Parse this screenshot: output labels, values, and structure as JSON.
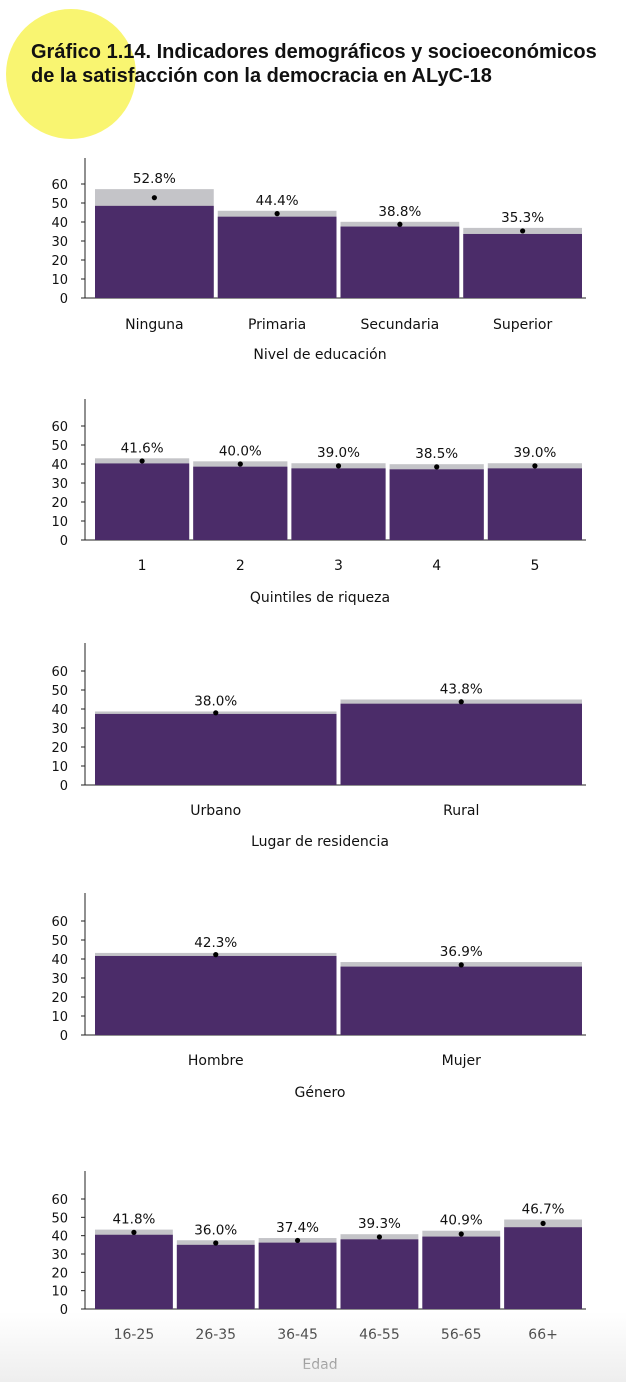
{
  "header": {
    "title_line1": "Gráfico 1.14. Indicadores demográficos y socioeconómicos",
    "title_line2": "de la satisfacción con la democracia en ALyC-18"
  },
  "colors": {
    "bar": "#4b2c69",
    "ci_band": "#c4c4c8",
    "dot": "#000000",
    "highlight": "#f9f571"
  },
  "chart_data": [
    {
      "type": "bar",
      "xlabel": "Nivel de educación",
      "categories": [
        "Ninguna",
        "Primaria",
        "Secundaria",
        "Superior"
      ],
      "values": [
        52.8,
        44.4,
        38.8,
        35.3
      ],
      "value_labels": [
        "52.8%",
        "44.4%",
        "38.8%",
        "35.3%"
      ],
      "ci": [
        [
          48.5,
          57.3
        ],
        [
          42.8,
          45.9
        ],
        [
          37.6,
          40.1
        ],
        [
          33.7,
          36.9
        ]
      ],
      "ylim": [
        0,
        60
      ],
      "yticks": [
        0,
        10,
        20,
        30,
        40,
        50,
        60
      ]
    },
    {
      "type": "bar",
      "xlabel": "Quintiles de riqueza",
      "categories": [
        "1",
        "2",
        "3",
        "4",
        "5"
      ],
      "values": [
        41.6,
        40.0,
        39.0,
        38.5,
        39.0
      ],
      "value_labels": [
        "41.6%",
        "40.0%",
        "39.0%",
        "38.5%",
        "39.0%"
      ],
      "ci": [
        [
          40.3,
          43.0
        ],
        [
          38.6,
          41.4
        ],
        [
          37.7,
          40.4
        ],
        [
          37.2,
          39.9
        ],
        [
          37.7,
          40.4
        ]
      ],
      "ylim": [
        0,
        60
      ],
      "yticks": [
        0,
        10,
        20,
        30,
        40,
        50,
        60
      ]
    },
    {
      "type": "bar",
      "xlabel": "Lugar de residencia",
      "categories": [
        "Urbano",
        "Rural"
      ],
      "values": [
        38.0,
        43.8
      ],
      "value_labels": [
        "38.0%",
        "43.8%"
      ],
      "ci": [
        [
          37.4,
          38.7
        ],
        [
          42.8,
          45.0
        ]
      ],
      "ylim": [
        0,
        60
      ],
      "yticks": [
        0,
        10,
        20,
        30,
        40,
        50,
        60
      ]
    },
    {
      "type": "bar",
      "xlabel": "Género",
      "categories": [
        "Hombre",
        "Mujer"
      ],
      "values": [
        42.3,
        36.9
      ],
      "value_labels": [
        "42.3%",
        "36.9%"
      ],
      "ci": [
        [
          41.6,
          43.2
        ],
        [
          36.0,
          38.4
        ]
      ],
      "ylim": [
        0,
        60
      ],
      "yticks": [
        0,
        10,
        20,
        30,
        40,
        50,
        60
      ]
    },
    {
      "type": "bar",
      "xlabel": "Edad",
      "categories": [
        "16-25",
        "26-35",
        "36-45",
        "46-55",
        "56-65",
        "66+"
      ],
      "values": [
        41.8,
        36.0,
        37.4,
        39.3,
        40.9,
        46.7
      ],
      "value_labels": [
        "41.8%",
        "36.0%",
        "37.4%",
        "39.3%",
        "40.9%",
        "46.7%"
      ],
      "ci": [
        [
          40.5,
          43.3
        ],
        [
          35.0,
          37.5
        ],
        [
          36.2,
          38.7
        ],
        [
          38.0,
          40.8
        ],
        [
          39.5,
          42.7
        ],
        [
          44.6,
          48.8
        ]
      ],
      "ylim": [
        0,
        60
      ],
      "yticks": [
        0,
        10,
        20,
        30,
        40,
        50,
        60
      ]
    }
  ]
}
